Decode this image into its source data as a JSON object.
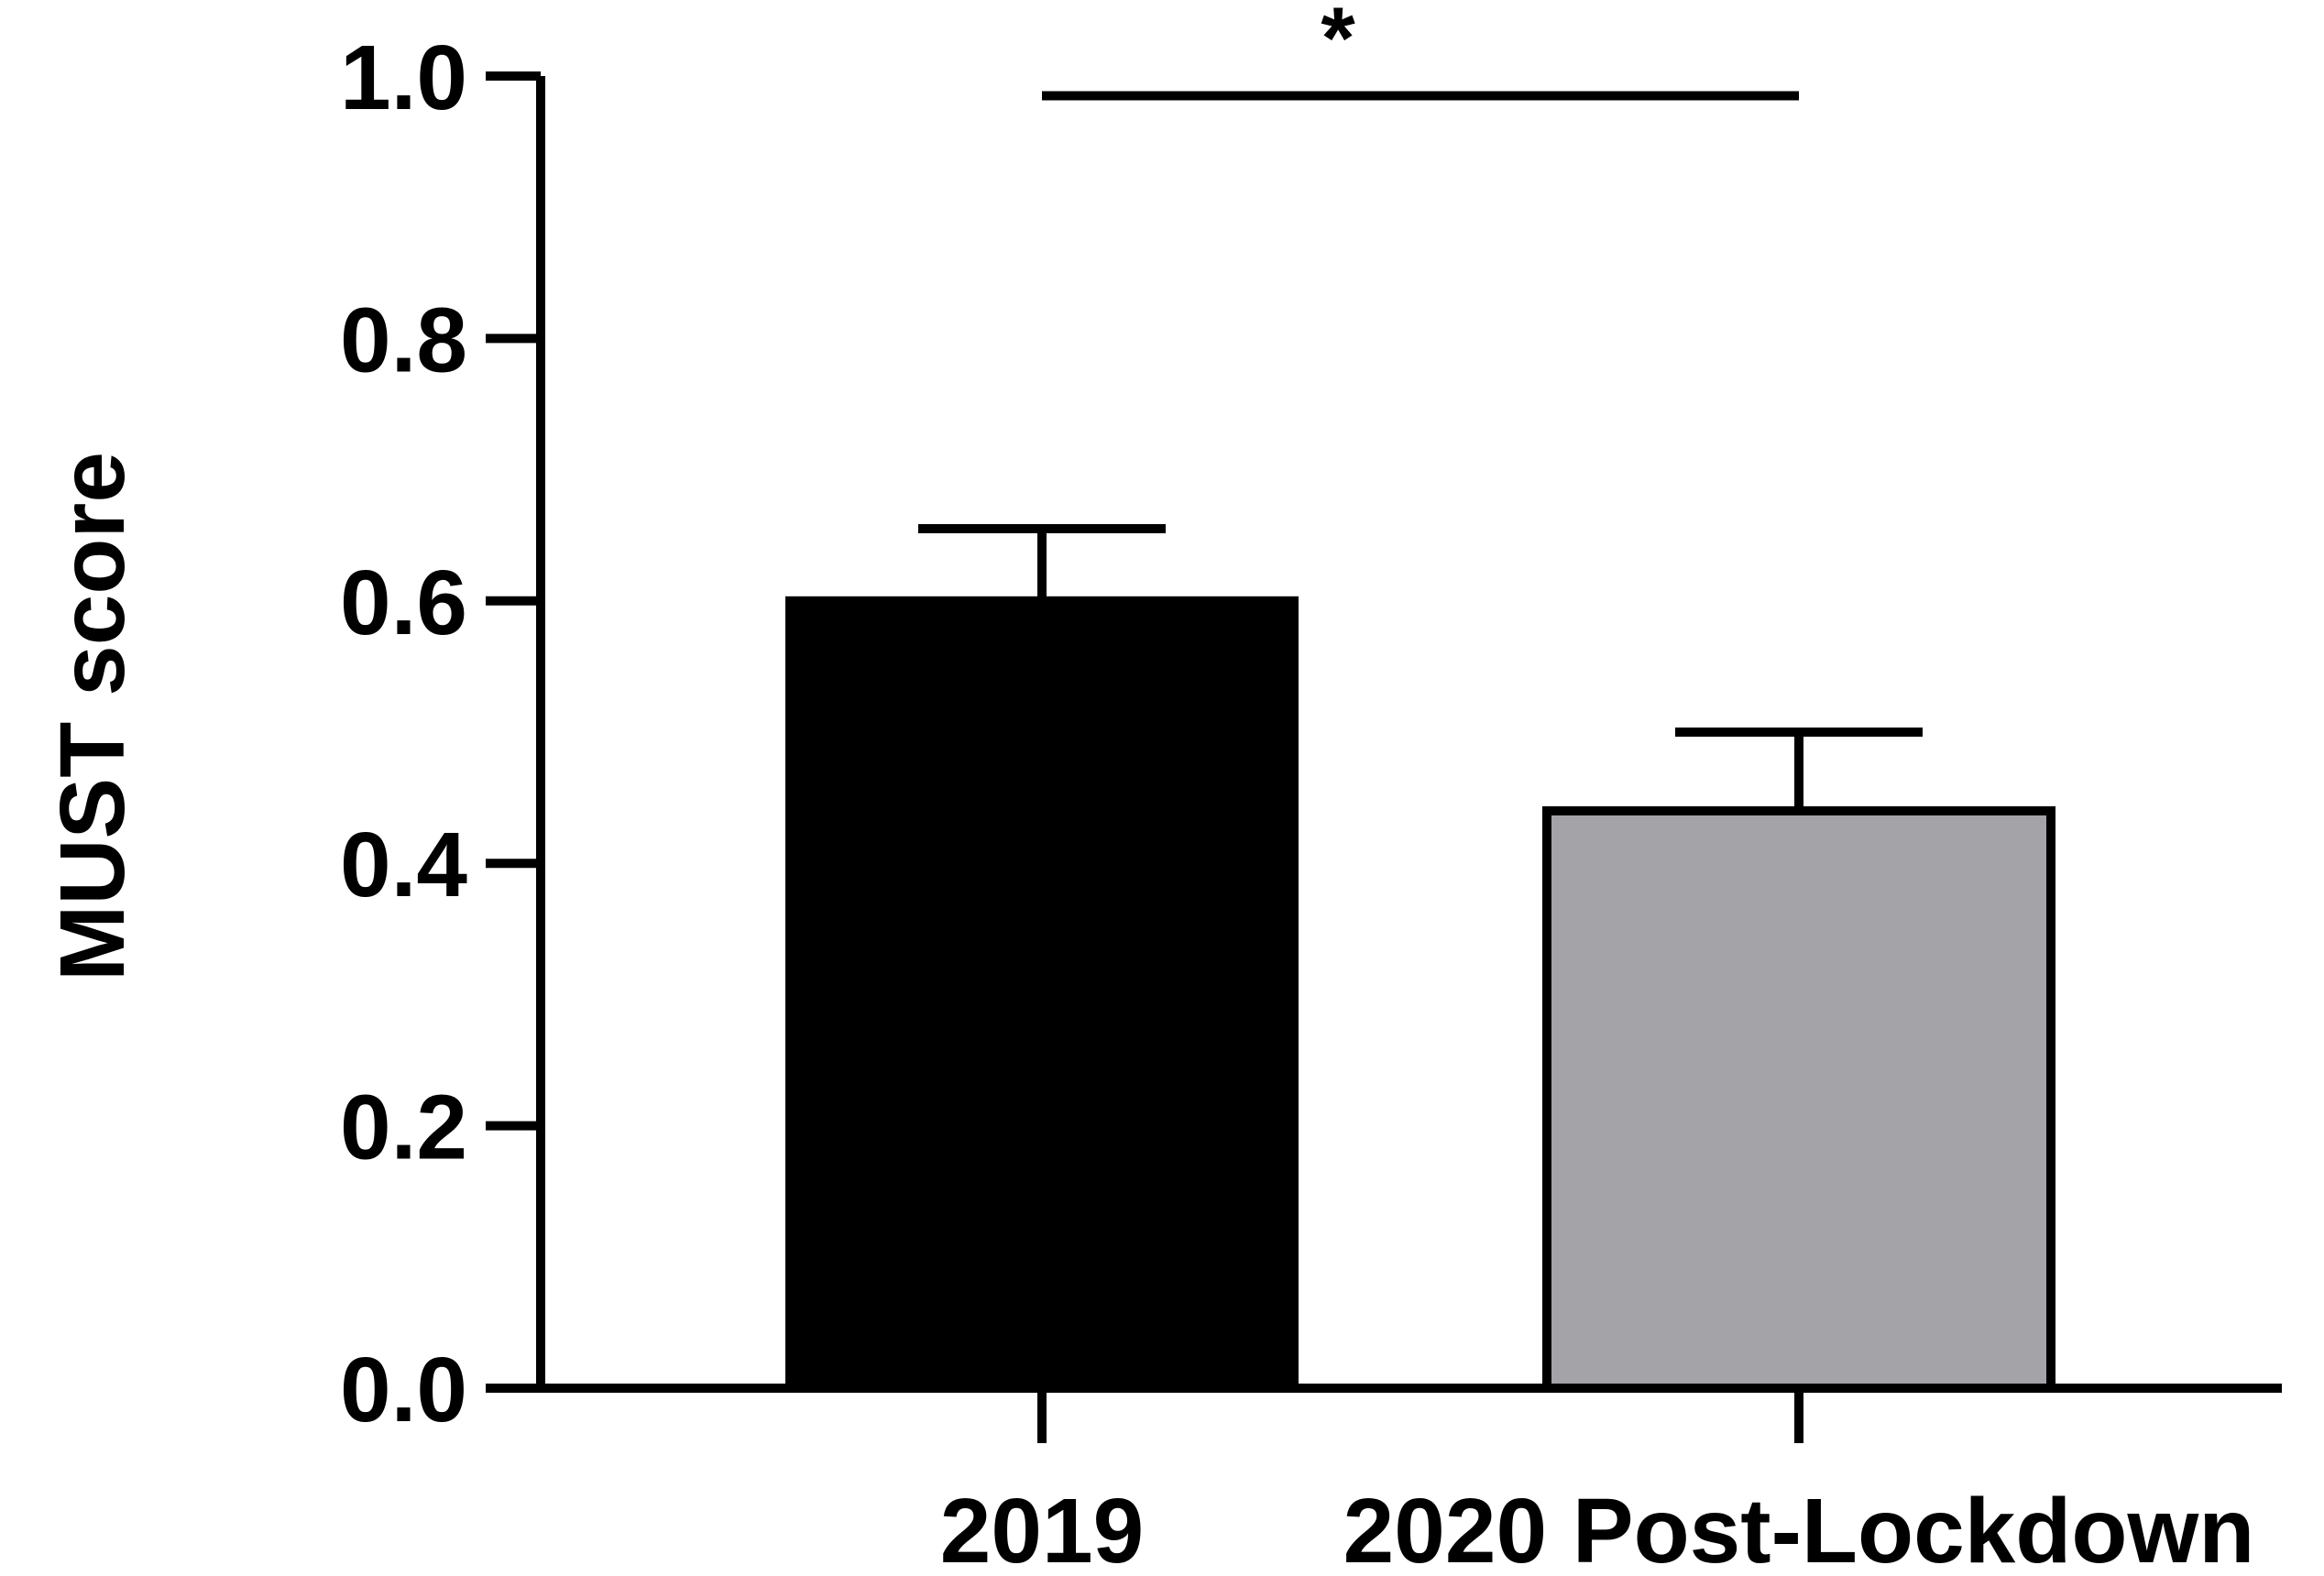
{
  "chart_data": {
    "type": "bar",
    "categories": [
      "2019",
      "2020 Post-Lockdown"
    ],
    "values": [
      0.6,
      0.44
    ],
    "error_upper": [
      0.655,
      0.5
    ],
    "bar_colors": [
      "#000000",
      "#a4a3a8"
    ],
    "bar_edge_color": "#000000",
    "xlabel": "",
    "ylabel": "MUST score",
    "ylim": [
      0,
      1.0
    ],
    "yticks": [
      0.0,
      0.2,
      0.4,
      0.6,
      0.8,
      1.0
    ],
    "ytick_labels": [
      "0.0",
      "0.2",
      "0.4",
      "0.6",
      "0.8",
      "1.0"
    ],
    "grid": false,
    "significance": {
      "between": [
        "2019",
        "2020 Post-Lockdown"
      ],
      "label": "*",
      "y": 0.985
    }
  }
}
